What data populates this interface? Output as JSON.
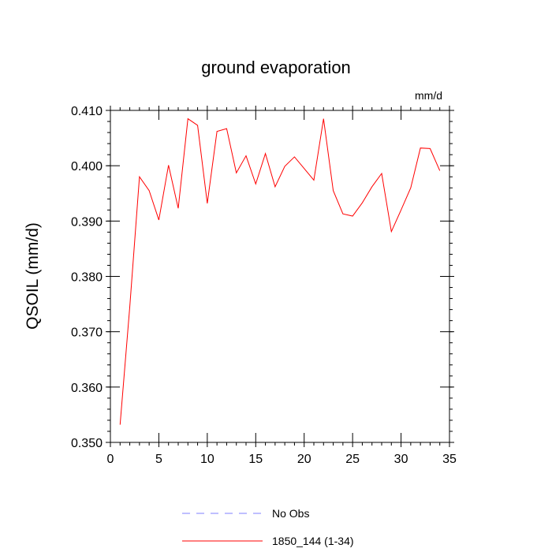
{
  "chart_data": {
    "type": "line",
    "title": "ground evaporation",
    "units": "mm/d",
    "ylabel": "QSOIL  (mm/d)",
    "xlabel": "",
    "xlim": [
      0,
      35
    ],
    "ylim": [
      0.35,
      0.41
    ],
    "xticks": [
      0,
      5,
      10,
      15,
      20,
      25,
      30,
      35
    ],
    "yticks": [
      0.35,
      0.36,
      0.37,
      0.38,
      0.39,
      0.4,
      0.41
    ],
    "xtick_labels": [
      "0",
      "5",
      "10",
      "15",
      "20",
      "25",
      "30",
      "35"
    ],
    "ytick_labels": [
      "0.350",
      "0.360",
      "0.370",
      "0.380",
      "0.390",
      "0.400",
      "0.410"
    ],
    "grid": false,
    "legend_position": "bottom",
    "series": [
      {
        "name": "No Obs",
        "color": "#7f7fff",
        "dashed": true,
        "x": [],
        "y": []
      },
      {
        "name": "1850_144 (1-34)",
        "color": "#ff0000",
        "dashed": false,
        "x": [
          1,
          2,
          3,
          4,
          5,
          6,
          7,
          8,
          9,
          10,
          11,
          12,
          13,
          14,
          15,
          16,
          17,
          18,
          19,
          20,
          21,
          22,
          23,
          24,
          25,
          26,
          27,
          28,
          29,
          30,
          31,
          32,
          33,
          34
        ],
        "y": [
          0.3532,
          0.3745,
          0.398,
          0.3955,
          0.3902,
          0.4001,
          0.3923,
          0.4085,
          0.4073,
          0.3932,
          0.4062,
          0.4067,
          0.3987,
          0.4018,
          0.3967,
          0.4022,
          0.3962,
          0.3999,
          0.4016,
          0.3995,
          0.3974,
          0.4085,
          0.3955,
          0.3913,
          0.3909,
          0.3933,
          0.3962,
          0.3986,
          0.3881,
          0.392,
          0.396,
          0.4032,
          0.4031,
          0.3991
        ]
      }
    ]
  }
}
